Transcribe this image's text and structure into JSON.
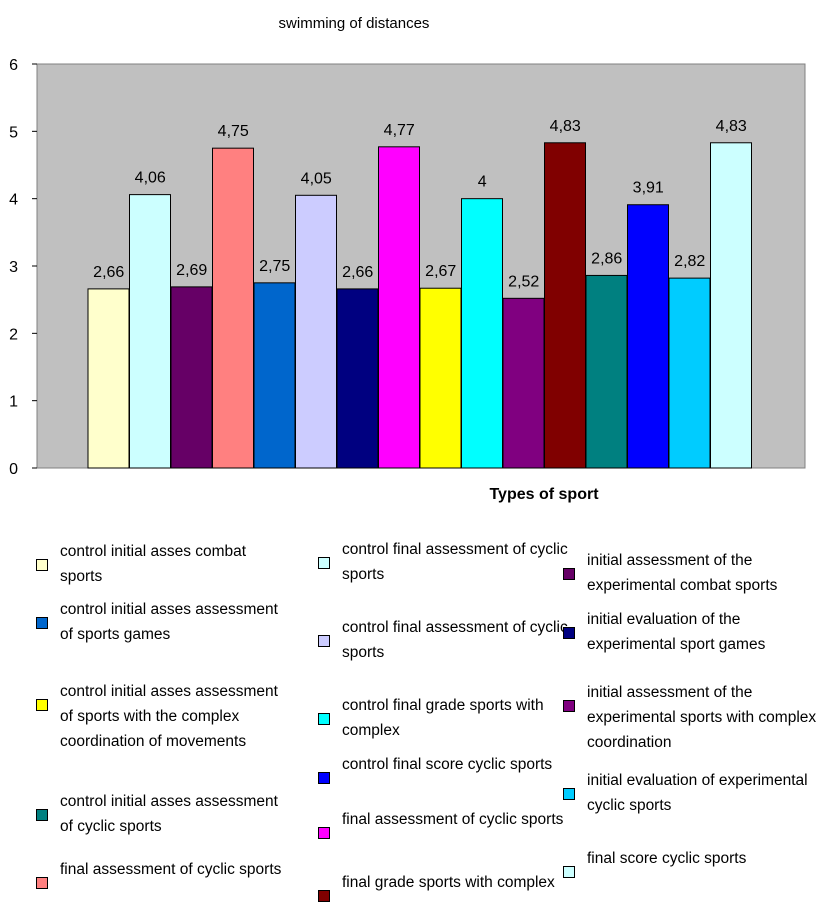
{
  "chart_data": {
    "type": "bar",
    "title": "swimming of distances",
    "xlabel": "Types of sport",
    "ylabel": "",
    "ylim": [
      0,
      6
    ],
    "yticks": [
      0,
      1,
      2,
      3,
      4,
      5,
      6
    ],
    "grid": false,
    "plot_background": "#c0c0c0",
    "legend_position": "bottom",
    "categories": [
      "Types of sport"
    ],
    "series": [
      {
        "name": "control initial asses combat sports",
        "value": 2.66,
        "label": "2,66",
        "color": "#ffffcc"
      },
      {
        "name": "control final assessment of cyclic sports",
        "value": 4.06,
        "label": "4,06",
        "color": "#ccffff"
      },
      {
        "name": "initial assessment of the experimental combat sports",
        "value": 2.69,
        "label": "2,69",
        "color": "#660066"
      },
      {
        "name": "final assessment of cyclic sports",
        "value": 4.75,
        "label": "4,75",
        "color": "#ff8080"
      },
      {
        "name": "control initial asses assessment of sports games",
        "value": 2.75,
        "label": "2,75",
        "color": "#0066cc"
      },
      {
        "name": "control final assessment of cyclic sports",
        "value": 4.05,
        "label": "4,05",
        "color": "#ccccff"
      },
      {
        "name": "initial evaluation of the experimental sport games",
        "value": 2.66,
        "label": "2,66",
        "color": "#000080"
      },
      {
        "name": "final assessment of cyclic sports",
        "value": 4.77,
        "label": "4,77",
        "color": "#ff00ff"
      },
      {
        "name": "control initial asses assessment of sports with the complex coordination of movements",
        "value": 2.67,
        "label": "2,67",
        "color": "#ffff00"
      },
      {
        "name": "control final grade sports with complex",
        "value": 4,
        "label": "4",
        "color": "#00ffff"
      },
      {
        "name": "initial assessment of the experimental sports with complex coordination",
        "value": 2.52,
        "label": "2,52",
        "color": "#800080"
      },
      {
        "name": "final grade sports with complex",
        "value": 4.83,
        "label": "4,83",
        "color": "#800000"
      },
      {
        "name": "control initial asses assessment of cyclic sports",
        "value": 2.86,
        "label": "2,86",
        "color": "#008080"
      },
      {
        "name": "control final score cyclic sports",
        "value": 3.91,
        "label": "3,91",
        "color": "#0000ff"
      },
      {
        "name": "initial evaluation of experimental cyclic sports",
        "value": 2.82,
        "label": "2,82",
        "color": "#00ccff"
      },
      {
        "name": "final score cyclic sports",
        "value": 4.83,
        "label": "4,83",
        "color": "#ccffff"
      }
    ]
  },
  "legend": [
    {
      "text": "control initial asses combat sports",
      "color": "#ffffcc"
    },
    {
      "text": "control initial asses assessment of sports games",
      "color": "#0066cc"
    },
    {
      "text": "control initial asses assessment of sports with the complex coordination of movements",
      "color": "#ffff00"
    },
    {
      "text": "control initial asses assessment of cyclic sports",
      "color": "#008080"
    },
    {
      "text": "final assessment of cyclic sports",
      "color": "#ff8080"
    },
    {
      "text": "control final assessment of cyclic sports",
      "color": "#ccffff"
    },
    {
      "text": "control final assessment of cyclic sports",
      "color": "#ccccff"
    },
    {
      "text": "control final grade sports with complex",
      "color": "#00ffff"
    },
    {
      "text": "control final score cyclic sports",
      "color": "#0000ff"
    },
    {
      "text": "final assessment of cyclic sports",
      "color": "#ff00ff"
    },
    {
      "text": "final grade sports with complex",
      "color": "#800000"
    },
    {
      "text": "initial assessment of the experimental combat sports",
      "color": "#660066"
    },
    {
      "text": "initial evaluation of the experimental sport games",
      "color": "#000080"
    },
    {
      "text": "initial assessment of the experimental sports with complex coordination",
      "color": "#800080"
    },
    {
      "text": "initial evaluation of experimental cyclic sports",
      "color": "#00ccff"
    },
    {
      "text": "final score cyclic sports",
      "color": "#ccffff"
    }
  ]
}
